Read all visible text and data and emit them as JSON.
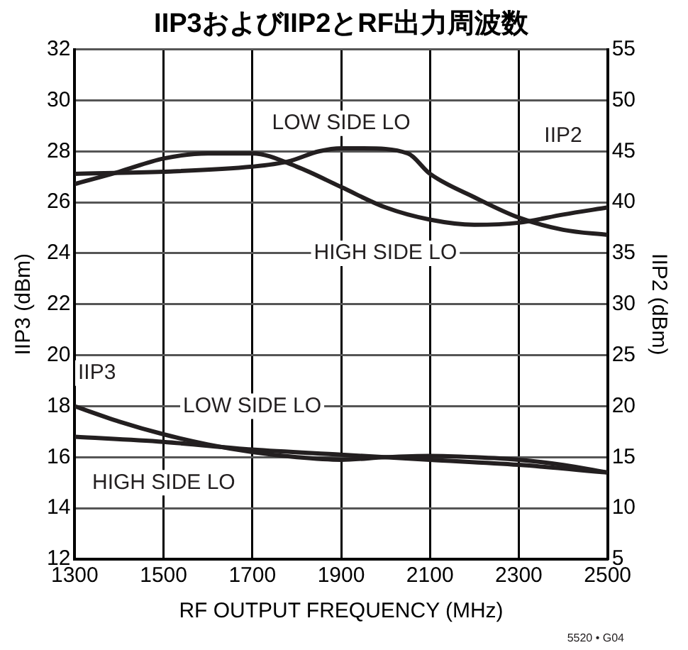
{
  "chart_data": {
    "type": "line",
    "title": "IIP3およびIIP2とRF出力周波数",
    "xlabel": "RF OUTPUT FREQUENCY (MHz)",
    "ylabel": "IIP3 (dBm)",
    "y2label": "IIP2 (dBm)",
    "x": [
      1300,
      1400,
      1500,
      1600,
      1700,
      1800,
      1900,
      2000,
      2100,
      2200,
      2300,
      2400,
      2500
    ],
    "series": [
      {
        "color": "#231f20",
        "axis": "y2",
        "x": [
          1300,
          1500,
          1700,
          1780,
          1850,
          1900,
          1950,
          2050,
          2100,
          2200,
          2300,
          2400,
          2500
        ],
        "values": [
          42.8,
          43,
          43.5,
          44,
          45,
          45.3,
          45.3,
          44.8,
          42.8,
          40.5,
          38.5,
          37.3,
          36.8
        ]
      },
      {
        "color": "#231f20",
        "axis": "y2",
        "values": [
          41.8,
          43,
          44.3,
          44.8,
          44.8,
          43.5,
          41.5,
          39.5,
          38.3,
          37.8,
          38,
          38.8,
          39.5
        ]
      },
      {
        "color": "#231f20",
        "values": [
          18,
          17.4,
          16.9,
          16.5,
          16.2,
          16,
          15.9,
          16,
          16.05,
          16,
          15.9,
          15.7,
          15.4
        ]
      },
      {
        "color": "#231f20",
        "x": [
          1300,
          1500,
          1700,
          1900,
          2100,
          2300,
          2500
        ],
        "values": [
          16.8,
          16.6,
          16.3,
          16.1,
          15.9,
          15.7,
          15.4
        ]
      }
    ],
    "xlim": [
      1300,
      2500
    ],
    "xticks": [
      1300,
      1500,
      1700,
      1900,
      2100,
      2300,
      2500
    ],
    "ylim": [
      12,
      32
    ],
    "yticks": [
      12,
      14,
      16,
      18,
      20,
      22,
      24,
      26,
      28,
      30,
      32
    ],
    "y2lim": [
      5,
      55
    ],
    "y2ticks": [
      5,
      10,
      15,
      20,
      25,
      30,
      35,
      40,
      45,
      50,
      55
    ],
    "grid": true,
    "legend": false,
    "marker": "none",
    "line_style": "solid",
    "annotations": [
      "LOW SIDE LO",
      {
        "text": "IIP2",
        "x": 2400,
        "y": 28.6
      },
      "HIGH SIDE LO",
      {
        "text": "IIP3",
        "x": 1350,
        "y": 19.3
      },
      "LOW SIDE LO",
      "HIGH SIDE LO",
      "5520 • G04"
    ]
  }
}
